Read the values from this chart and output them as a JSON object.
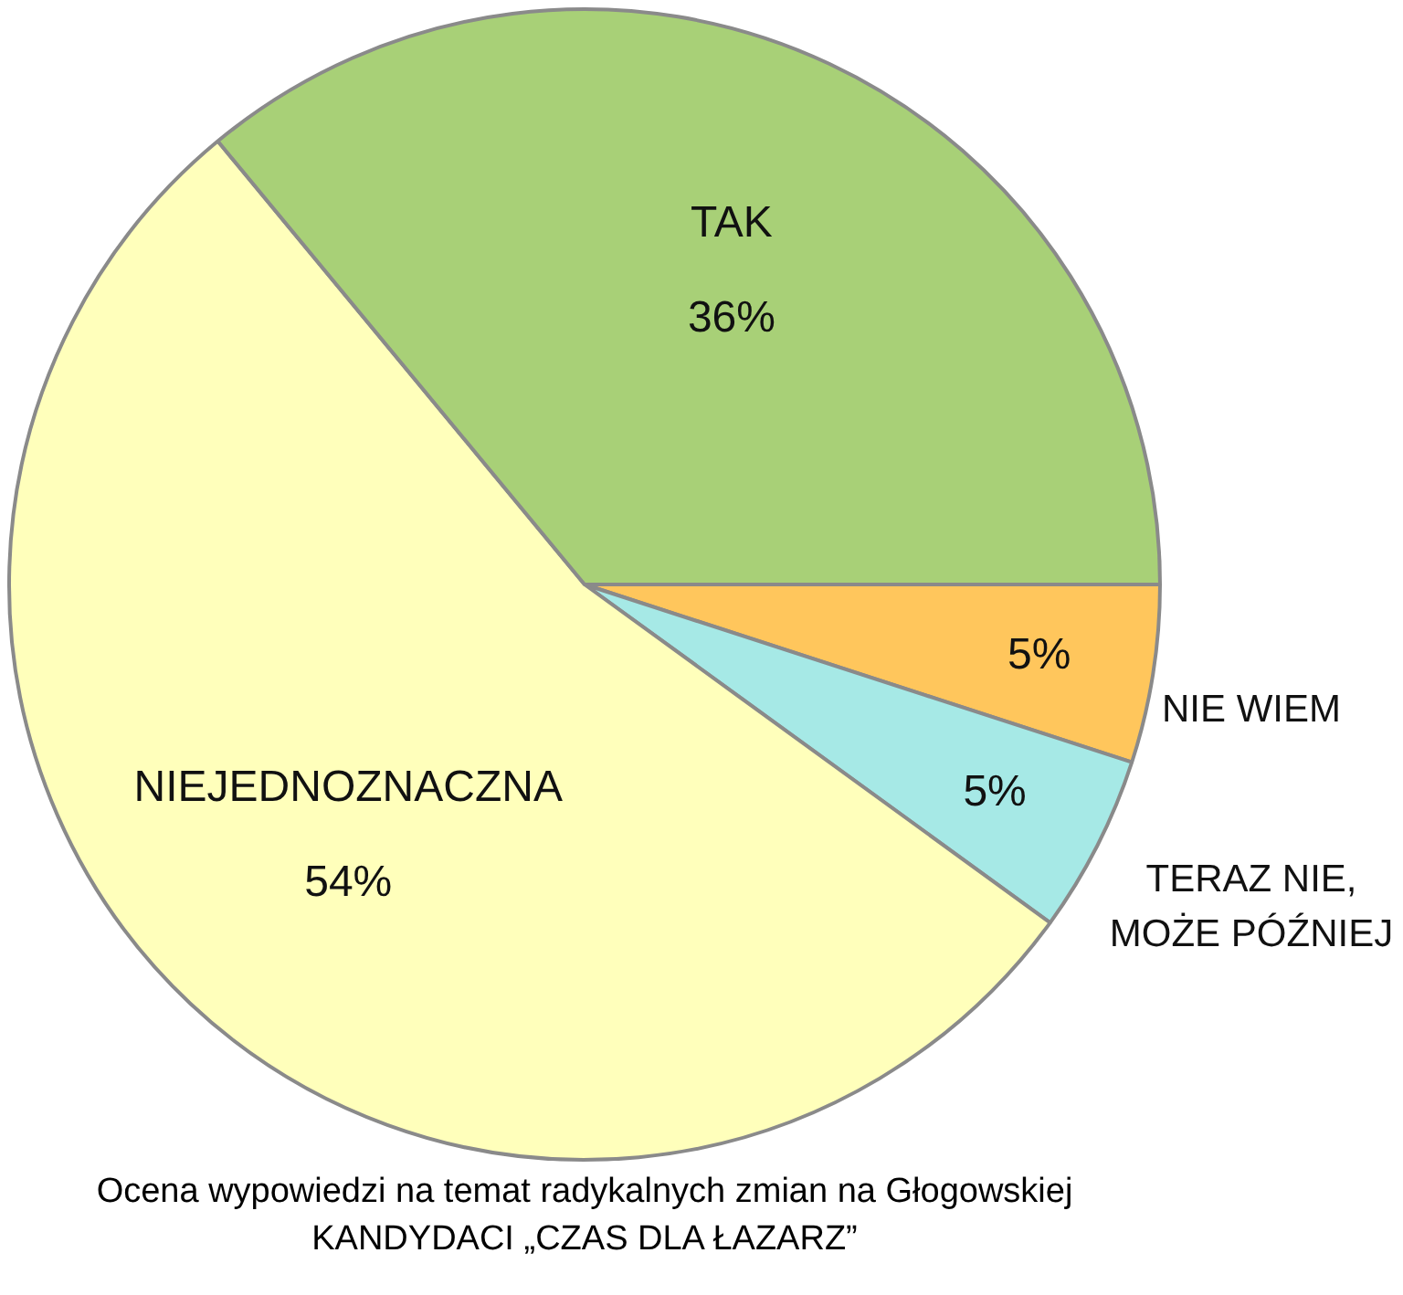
{
  "chart_data": {
    "type": "pie",
    "title": "Ocena wypowiedzi na temat radykalnych zmian na Głogowskiej",
    "subtitle": "KANDYDACI „CZAS DLA ŁAZARZ”",
    "categories": [
      "NIE WIEM",
      "TERAZ NIE, MOŻE PÓŹNIEJ",
      "NIEJEDNOZNACZNA",
      "TAK"
    ],
    "values": [
      5,
      5,
      54,
      36
    ],
    "colors": [
      "#ffc65c",
      "#a6e9e6",
      "#ffffbb",
      "#a8d077"
    ],
    "value_labels": [
      "5%",
      "5%",
      "54%",
      "36%"
    ],
    "legend": false
  }
}
